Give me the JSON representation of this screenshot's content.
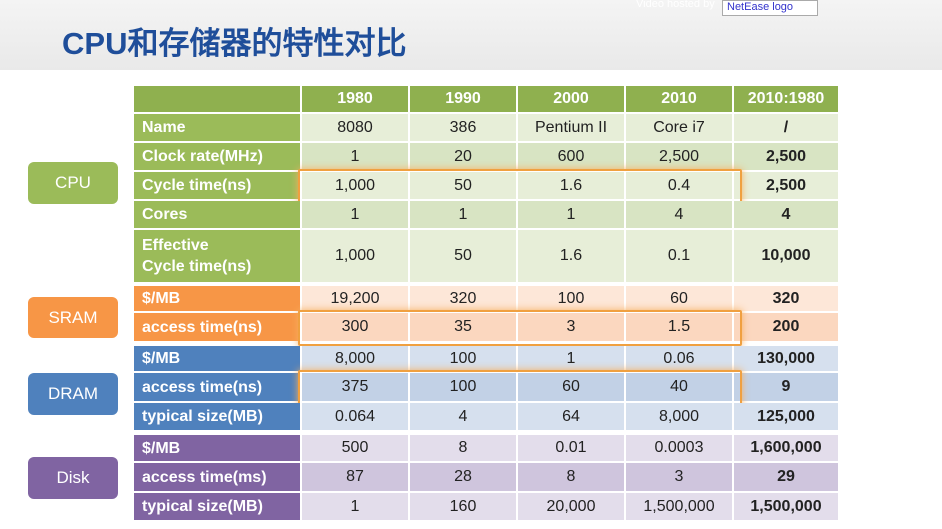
{
  "header": {
    "title": "CPU和存储器的特性对比",
    "watermark": "Video hosted by",
    "logo": "NetEase logo"
  },
  "table": {
    "columns": [
      "1980",
      "1990",
      "2000",
      "2010",
      "2010:1980"
    ],
    "groups": [
      {
        "label": "CPU",
        "rows": [
          [
            "Name",
            "8080",
            "386",
            "Pentium II",
            "Core i7",
            "/"
          ],
          [
            "Clock rate(MHz)",
            "1",
            "20",
            "600",
            "2,500",
            "2,500"
          ],
          [
            "Cycle time(ns)",
            "1,000",
            "50",
            "1.6",
            "0.4",
            "2,500"
          ],
          [
            "Cores",
            "1",
            "1",
            "1",
            "4",
            "4"
          ],
          [
            "Effective\nCycle time(ns)",
            "1,000",
            "50",
            "1.6",
            "0.1",
            "10,000"
          ]
        ]
      },
      {
        "label": "SRAM",
        "rows": [
          [
            "$/MB",
            "19,200",
            "320",
            "100",
            "60",
            "320"
          ],
          [
            "access time(ns)",
            "300",
            "35",
            "3",
            "1.5",
            "200"
          ]
        ]
      },
      {
        "label": "DRAM",
        "rows": [
          [
            "$/MB",
            "8,000",
            "100",
            "1",
            "0.06",
            "130,000"
          ],
          [
            "access time(ns)",
            "375",
            "100",
            "60",
            "40",
            "9"
          ],
          [
            "typical size(MB)",
            "0.064",
            "4",
            "64",
            "8,000",
            "125,000"
          ]
        ]
      },
      {
        "label": "Disk",
        "rows": [
          [
            "$/MB",
            "500",
            "8",
            "0.01",
            "0.0003",
            "1,600,000"
          ],
          [
            "access time(ms)",
            "87",
            "28",
            "8",
            "3",
            "29"
          ],
          [
            "typical size(MB)",
            "1",
            "160",
            "20,000",
            "1,500,000",
            "1,500,000"
          ]
        ]
      }
    ]
  }
}
